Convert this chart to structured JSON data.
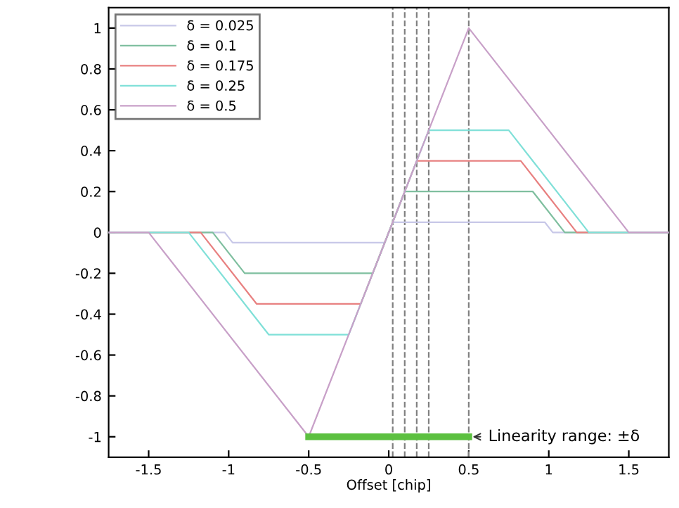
{
  "chart_data": {
    "type": "line",
    "xlabel": "Offset [chip]",
    "xlim": [
      -1.75,
      1.75
    ],
    "ylim": [
      -1.1,
      1.1
    ],
    "xticks": [
      -1.5,
      -1,
      -0.5,
      0,
      0.5,
      1,
      1.5
    ],
    "yticks": [
      -1,
      -0.8,
      -0.6,
      -0.4,
      -0.2,
      0,
      0.2,
      0.4,
      0.6,
      0.8,
      1
    ],
    "grid": false,
    "legend": "top left",
    "marker": "none",
    "line_style": "solid",
    "series": [
      {
        "name": "δ = 0.025",
        "color": "#c8c8e8",
        "x": [
          -1.75,
          -1.025,
          -0.975,
          -0.025,
          0.025,
          0.975,
          1.025,
          1.75
        ],
        "values": [
          0,
          0,
          -0.05,
          -0.05,
          0.05,
          0.05,
          0,
          0
        ]
      },
      {
        "name": "δ = 0.1",
        "color": "#7fbf9f",
        "x": [
          -1.75,
          -1.1,
          -0.9,
          -0.1,
          0.1,
          0.9,
          1.1,
          1.75
        ],
        "values": [
          0,
          0,
          -0.2,
          -0.2,
          0.2,
          0.2,
          0,
          0
        ]
      },
      {
        "name": "δ = 0.175",
        "color": "#e88080",
        "x": [
          -1.75,
          -1.175,
          -0.825,
          -0.175,
          0.175,
          0.825,
          1.175,
          1.75
        ],
        "values": [
          0,
          0,
          -0.35,
          -0.35,
          0.35,
          0.35,
          0,
          0
        ]
      },
      {
        "name": "δ = 0.25",
        "color": "#80e0d8",
        "x": [
          -1.75,
          -1.25,
          -0.75,
          -0.25,
          0.25,
          0.75,
          1.25,
          1.75
        ],
        "values": [
          0,
          0,
          -0.5,
          -0.5,
          0.5,
          0.5,
          0,
          0
        ]
      },
      {
        "name": "δ = 0.5",
        "color": "#c8a0c8",
        "x": [
          -1.75,
          -1.5,
          -0.5,
          0.5,
          1.5,
          1.75
        ],
        "values": [
          0,
          0,
          -1,
          1,
          0,
          0
        ]
      },
      {
        "color": "#5cc040",
        "x": [
          -0.5,
          0.5
        ],
        "values": [
          -1,
          -1
        ]
      }
    ],
    "ref_lines": [
      {
        "axis": "x",
        "value": 0.025,
        "color": "#808080",
        "line_style": "dashed"
      },
      {
        "axis": "x",
        "value": 0.1,
        "color": "#808080",
        "line_style": "dashed"
      },
      {
        "axis": "x",
        "value": 0.175,
        "color": "#808080",
        "line_style": "dashed"
      },
      {
        "axis": "x",
        "value": 0.25,
        "color": "#808080",
        "line_style": "dashed"
      },
      {
        "axis": "x",
        "value": 0.5,
        "color": "#808080",
        "line_style": "dashed"
      }
    ],
    "annotations": [
      {
        "text": "Linearity range: ±δ",
        "x": 0.5,
        "y": -1
      }
    ]
  }
}
